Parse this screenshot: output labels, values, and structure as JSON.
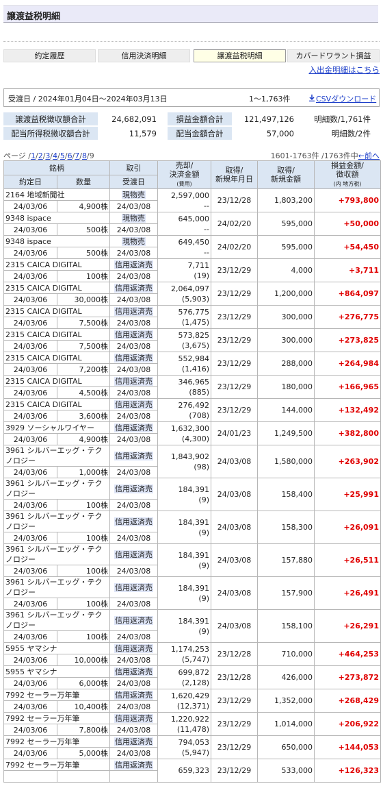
{
  "header": {
    "title": "譲渡益税明細"
  },
  "tabs": {
    "items": [
      "約定履歴",
      "信用決済明細",
      "譲渡益税明細",
      "カバードワラント損益"
    ],
    "selected": 2
  },
  "link": "入出金明細はこちら",
  "period": {
    "label": "受渡日 / 2024年01月04日～2024年03月13日",
    "count": "1～1,763件",
    "csv": "CSVダウンロード"
  },
  "summary": {
    "rows": [
      [
        "譲渡益税徴収額合計",
        "24,682,091",
        "損益金額合計",
        "121,497,126",
        "明細数/1,761件"
      ],
      [
        "配当所得税徴収額合計",
        "11,579",
        "配当金額合計",
        "57,000",
        "明細数/2件"
      ]
    ]
  },
  "pager": {
    "prefix": "ページ /",
    "sep": "/",
    "pages": [
      "1",
      "2",
      "3",
      "4",
      "5",
      "6",
      "7",
      "8"
    ],
    "current": "9",
    "range": "1601-1763件 /1763件中",
    "prev": "←前へ"
  },
  "table": {
    "head1": [
      {
        "lines": [
          "銘柄"
        ]
      },
      {
        "lines": [
          "取引"
        ]
      },
      {
        "lines": [
          "売却/",
          "決済金額"
        ],
        "sub": "(費用)"
      },
      {
        "lines": [
          "取得/",
          "新規年月日"
        ]
      },
      {
        "lines": [
          "取得/",
          "新規金額"
        ]
      },
      {
        "lines": [
          "損益金額/",
          "徴収額"
        ],
        "sub": "(内 地方税)"
      }
    ],
    "head2": [
      "約定日",
      "数量",
      "受渡日"
    ],
    "rows": [
      {
        "name": "2164 地域新聞社",
        "trade": "現物売",
        "date": "24/03/06",
        "qty": "4,900株",
        "settle": "24/03/08",
        "amount": "2,597,000",
        "fee": "--",
        "acq_date": "23/12/28",
        "acq_amount": "1,803,200",
        "pl": "+793,800"
      },
      {
        "name": "9348 ispace",
        "trade": "現物売",
        "date": "24/03/06",
        "qty": "500株",
        "settle": "24/03/08",
        "amount": "645,000",
        "fee": "--",
        "acq_date": "24/02/20",
        "acq_amount": "595,000",
        "pl": "+50,000"
      },
      {
        "name": "9348 ispace",
        "trade": "現物売",
        "date": "24/03/06",
        "qty": "500株",
        "settle": "24/03/08",
        "amount": "649,450",
        "fee": "--",
        "acq_date": "24/02/20",
        "acq_amount": "595,000",
        "pl": "+54,450"
      },
      {
        "name": "2315 CAICA DIGITAL",
        "trade": "信用返済売",
        "date": "24/03/06",
        "qty": "100株",
        "settle": "24/03/08",
        "amount": "7,711",
        "fee": "(19)",
        "acq_date": "23/12/29",
        "acq_amount": "4,000",
        "pl": "+3,711"
      },
      {
        "name": "2315 CAICA DIGITAL",
        "trade": "信用返済売",
        "date": "24/03/06",
        "qty": "30,000株",
        "settle": "24/03/08",
        "amount": "2,064,097",
        "fee": "(5,903)",
        "acq_date": "23/12/29",
        "acq_amount": "1,200,000",
        "pl": "+864,097"
      },
      {
        "name": "2315 CAICA DIGITAL",
        "trade": "信用返済売",
        "date": "24/03/06",
        "qty": "7,500株",
        "settle": "24/03/08",
        "amount": "576,775",
        "fee": "(1,475)",
        "acq_date": "23/12/29",
        "acq_amount": "300,000",
        "pl": "+276,775"
      },
      {
        "name": "2315 CAICA DIGITAL",
        "trade": "信用返済売",
        "date": "24/03/06",
        "qty": "7,500株",
        "settle": "24/03/08",
        "amount": "573,825",
        "fee": "(3,675)",
        "acq_date": "23/12/29",
        "acq_amount": "300,000",
        "pl": "+273,825"
      },
      {
        "name": "2315 CAICA DIGITAL",
        "trade": "信用返済売",
        "date": "24/03/06",
        "qty": "7,200株",
        "settle": "24/03/08",
        "amount": "552,984",
        "fee": "(1,416)",
        "acq_date": "23/12/29",
        "acq_amount": "288,000",
        "pl": "+264,984"
      },
      {
        "name": "2315 CAICA DIGITAL",
        "trade": "信用返済売",
        "date": "24/03/06",
        "qty": "4,500株",
        "settle": "24/03/08",
        "amount": "346,965",
        "fee": "(885)",
        "acq_date": "23/12/29",
        "acq_amount": "180,000",
        "pl": "+166,965"
      },
      {
        "name": "2315 CAICA DIGITAL",
        "trade": "信用返済売",
        "date": "24/03/06",
        "qty": "3,600株",
        "settle": "24/03/08",
        "amount": "276,492",
        "fee": "(708)",
        "acq_date": "23/12/29",
        "acq_amount": "144,000",
        "pl": "+132,492"
      },
      {
        "name": "3929 ソーシャルワイヤー",
        "trade": "信用返済売",
        "date": "24/03/06",
        "qty": "4,900株",
        "settle": "24/03/08",
        "amount": "1,632,300",
        "fee": "(4,300)",
        "acq_date": "24/01/23",
        "acq_amount": "1,249,500",
        "pl": "+382,800"
      },
      {
        "name": "3961 シルバーエッグ・テクノロジー",
        "trade": "信用返済売",
        "date": "24/03/06",
        "qty": "1,000株",
        "settle": "24/03/08",
        "amount": "1,843,902",
        "fee": "(98)",
        "acq_date": "24/03/08",
        "acq_amount": "1,580,000",
        "pl": "+263,902"
      },
      {
        "name": "3961 シルバーエッグ・テクノロジー",
        "trade": "信用返済売",
        "date": "24/03/06",
        "qty": "100株",
        "settle": "24/03/08",
        "amount": "184,391",
        "fee": "(9)",
        "acq_date": "24/03/08",
        "acq_amount": "158,400",
        "pl": "+25,991"
      },
      {
        "name": "3961 シルバーエッグ・テクノロジー",
        "trade": "信用返済売",
        "date": "24/03/06",
        "qty": "100株",
        "settle": "24/03/08",
        "amount": "184,391",
        "fee": "(9)",
        "acq_date": "24/03/08",
        "acq_amount": "158,300",
        "pl": "+26,091"
      },
      {
        "name": "3961 シルバーエッグ・テクノロジー",
        "trade": "信用返済売",
        "date": "24/03/06",
        "qty": "100株",
        "settle": "24/03/08",
        "amount": "184,391",
        "fee": "(9)",
        "acq_date": "24/03/08",
        "acq_amount": "157,880",
        "pl": "+26,511"
      },
      {
        "name": "3961 シルバーエッグ・テクノロジー",
        "trade": "信用返済売",
        "date": "24/03/06",
        "qty": "100株",
        "settle": "24/03/08",
        "amount": "184,391",
        "fee": "(9)",
        "acq_date": "24/03/08",
        "acq_amount": "157,900",
        "pl": "+26,491"
      },
      {
        "name": "3961 シルバーエッグ・テクノロジー",
        "trade": "信用返済売",
        "date": "24/03/06",
        "qty": "100株",
        "settle": "24/03/08",
        "amount": "184,391",
        "fee": "(9)",
        "acq_date": "24/03/08",
        "acq_amount": "158,100",
        "pl": "+26,291"
      },
      {
        "name": "5955 ヤマシナ",
        "trade": "信用返済売",
        "date": "24/03/06",
        "qty": "10,000株",
        "settle": "24/03/08",
        "amount": "1,174,253",
        "fee": "(5,747)",
        "acq_date": "23/12/28",
        "acq_amount": "710,000",
        "pl": "+464,253"
      },
      {
        "name": "5955 ヤマシナ",
        "trade": "信用返済売",
        "date": "24/03/06",
        "qty": "6,000株",
        "settle": "24/03/08",
        "amount": "699,872",
        "fee": "(2,128)",
        "acq_date": "23/12/28",
        "acq_amount": "426,000",
        "pl": "+273,872"
      },
      {
        "name": "7992 セーラー万年筆",
        "trade": "信用返済売",
        "date": "24/03/06",
        "qty": "10,400株",
        "settle": "24/03/08",
        "amount": "1,620,429",
        "fee": "(12,371)",
        "acq_date": "23/12/29",
        "acq_amount": "1,352,000",
        "pl": "+268,429"
      },
      {
        "name": "7992 セーラー万年筆",
        "trade": "信用返済売",
        "date": "24/03/06",
        "qty": "7,800株",
        "settle": "24/03/08",
        "amount": "1,220,922",
        "fee": "(11,478)",
        "acq_date": "23/12/29",
        "acq_amount": "1,014,000",
        "pl": "+206,922"
      },
      {
        "name": "7992 セーラー万年筆",
        "trade": "信用返済売",
        "date": "24/03/06",
        "qty": "5,000株",
        "settle": "24/03/08",
        "amount": "794,053",
        "fee": "(5,947)",
        "acq_date": "23/12/29",
        "acq_amount": "650,000",
        "pl": "+144,053"
      },
      {
        "name": "7992 セーラー万年筆",
        "trade": "信用返済売",
        "amount": "659,323",
        "acq_date": "23/12/29",
        "acq_amount": "533,000",
        "pl": "+126,323"
      }
    ]
  }
}
